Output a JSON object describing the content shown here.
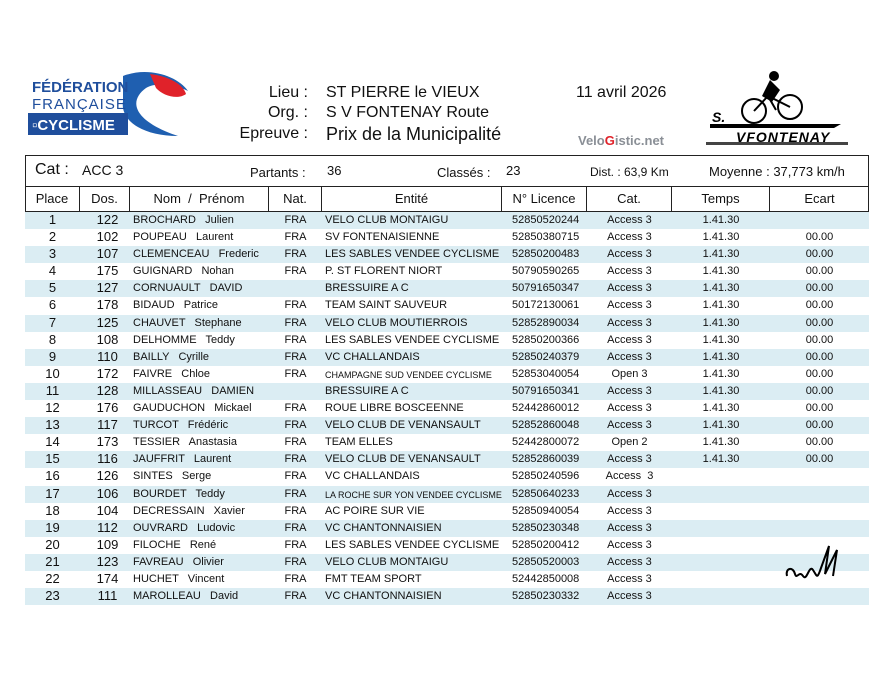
{
  "logos": {
    "ffc": "FÉDÉRATION FRANÇAISE DE CYCLISME",
    "club": "S. V FONTENAY",
    "velogistic_pre": "Velo",
    "velogistic_g": "G",
    "velogistic_post": "istic.net"
  },
  "header": {
    "lieu_label": "Lieu :",
    "lieu": "ST PIERRE le VIEUX",
    "org_label": "Org. :",
    "org": "S V FONTENAY Route",
    "epreuve_label": "Epreuve :",
    "epreuve": "Prix de la Municipalité",
    "date": "11 avril 2026"
  },
  "info": {
    "cat_label": "Cat :",
    "cat": "ACC 3",
    "partants_label": "Partants :",
    "partants": "36",
    "classes_label": "Classés :",
    "classes": "23",
    "dist": "Dist. : 63,9 Km",
    "moyenne": "Moyenne : 37,773 km/h"
  },
  "columns": [
    "Place",
    "Dos.",
    "Nom  /  Prénom",
    "Nat.",
    "Entité",
    "N° Licence",
    "Cat.",
    "Temps",
    "Ecart"
  ],
  "rows": [
    [
      "1",
      "122",
      "BROCHARD   Julien",
      "FRA",
      "VELO CLUB MONTAIGU",
      "52850520244",
      "Access 3",
      "1.41.30",
      ""
    ],
    [
      "2",
      "102",
      "POUPEAU   Laurent",
      "FRA",
      "SV FONTENAISIENNE",
      "52850380715",
      "Access 3",
      "1.41.30",
      "00.00"
    ],
    [
      "3",
      "107",
      "CLEMENCEAU   Frederic",
      "FRA",
      "LES SABLES VENDEE CYCLISME",
      "52850200483",
      "Access 3",
      "1.41.30",
      "00.00"
    ],
    [
      "4",
      "175",
      "GUIGNARD   Nohan",
      "FRA",
      "P. ST FLORENT NIORT",
      "50790590265",
      "Access 3",
      "1.41.30",
      "00.00"
    ],
    [
      "5",
      "127",
      "CORNUAULT   DAVID",
      "",
      "BRESSUIRE A C",
      "50791650347",
      "Access 3",
      "1.41.30",
      "00.00"
    ],
    [
      "6",
      "178",
      "BIDAUD   Patrice",
      "FRA",
      "TEAM SAINT SAUVEUR",
      "50172130061",
      "Access 3",
      "1.41.30",
      "00.00"
    ],
    [
      "7",
      "125",
      "CHAUVET   Stephane",
      "FRA",
      "VELO CLUB MOUTIERROIS",
      "52852890034",
      "Access 3",
      "1.41.30",
      "00.00"
    ],
    [
      "8",
      "108",
      "DELHOMME   Teddy",
      "FRA",
      "LES SABLES VENDEE CYCLISME",
      "52850200366",
      "Access 3",
      "1.41.30",
      "00.00"
    ],
    [
      "9",
      "110",
      "BAILLY   Cyrille",
      "FRA",
      "VC CHALLANDAIS",
      "52850240379",
      "Access 3",
      "1.41.30",
      "00.00"
    ],
    [
      "10",
      "172",
      "FAIVRE   Chloe",
      "FRA",
      "CHAMPAGNE SUD VENDEE CYCLISME",
      "52853040054",
      "Open 3",
      "1.41.30",
      "00.00"
    ],
    [
      "11",
      "128",
      "MILLASSEAU   DAMIEN",
      "",
      "BRESSUIRE A C",
      "50791650341",
      "Access 3",
      "1.41.30",
      "00.00"
    ],
    [
      "12",
      "176",
      "GAUDUCHON   Mickael",
      "FRA",
      "ROUE LIBRE BOSCEENNE",
      "52442860012",
      "Access 3",
      "1.41.30",
      "00.00"
    ],
    [
      "13",
      "117",
      "TURCOT   Frédéric",
      "FRA",
      "VELO CLUB DE VENANSAULT",
      "52852860048",
      "Access 3",
      "1.41.30",
      "00.00"
    ],
    [
      "14",
      "173",
      "TESSIER   Anastasia",
      "FRA",
      "TEAM ELLES",
      "52442800072",
      "Open 2",
      "1.41.30",
      "00.00"
    ],
    [
      "15",
      "116",
      "JAUFFRIT   Laurent",
      "FRA",
      "VELO CLUB DE VENANSAULT",
      "52852860039",
      "Access 3",
      "1.41.30",
      "00.00"
    ],
    [
      "16",
      "126",
      "SINTES   Serge",
      "FRA",
      "VC CHALLANDAIS",
      "52850240596",
      "Access  3",
      "",
      ""
    ],
    [
      "17",
      "106",
      "BOURDET   Teddy",
      "FRA",
      "LA ROCHE SUR YON VENDEE CYCLISME",
      "52850640233",
      "Access 3",
      "",
      ""
    ],
    [
      "18",
      "104",
      "DECRESSAIN   Xavier",
      "FRA",
      "AC POIRE SUR VIE",
      "52850940054",
      "Access 3",
      "",
      ""
    ],
    [
      "19",
      "112",
      "OUVRARD   Ludovic",
      "FRA",
      "VC CHANTONNAISIEN",
      "52850230348",
      "Access 3",
      "",
      ""
    ],
    [
      "20",
      "109",
      "FILOCHE   René",
      "FRA",
      "LES SABLES VENDEE CYCLISME",
      "52850200412",
      "Access 3",
      "",
      ""
    ],
    [
      "21",
      "123",
      "FAVREAU   Olivier",
      "FRA",
      "VELO CLUB MONTAIGU",
      "52850520003",
      "Access 3",
      "",
      ""
    ],
    [
      "22",
      "174",
      "HUCHET   Vincent",
      "FRA",
      "FMT TEAM SPORT",
      "52442850008",
      "Access 3",
      "",
      ""
    ],
    [
      "23",
      "111",
      "MAROLLEAU   David",
      "FRA",
      "VC CHANTONNAISIEN",
      "52850230332",
      "Access 3",
      "",
      ""
    ]
  ],
  "colors": {
    "stripe": "#dbedf3",
    "ffc_blue": "#1f4e9c",
    "ffc_red": "#e0222a",
    "velogistic_gray": "#8a8f96"
  }
}
